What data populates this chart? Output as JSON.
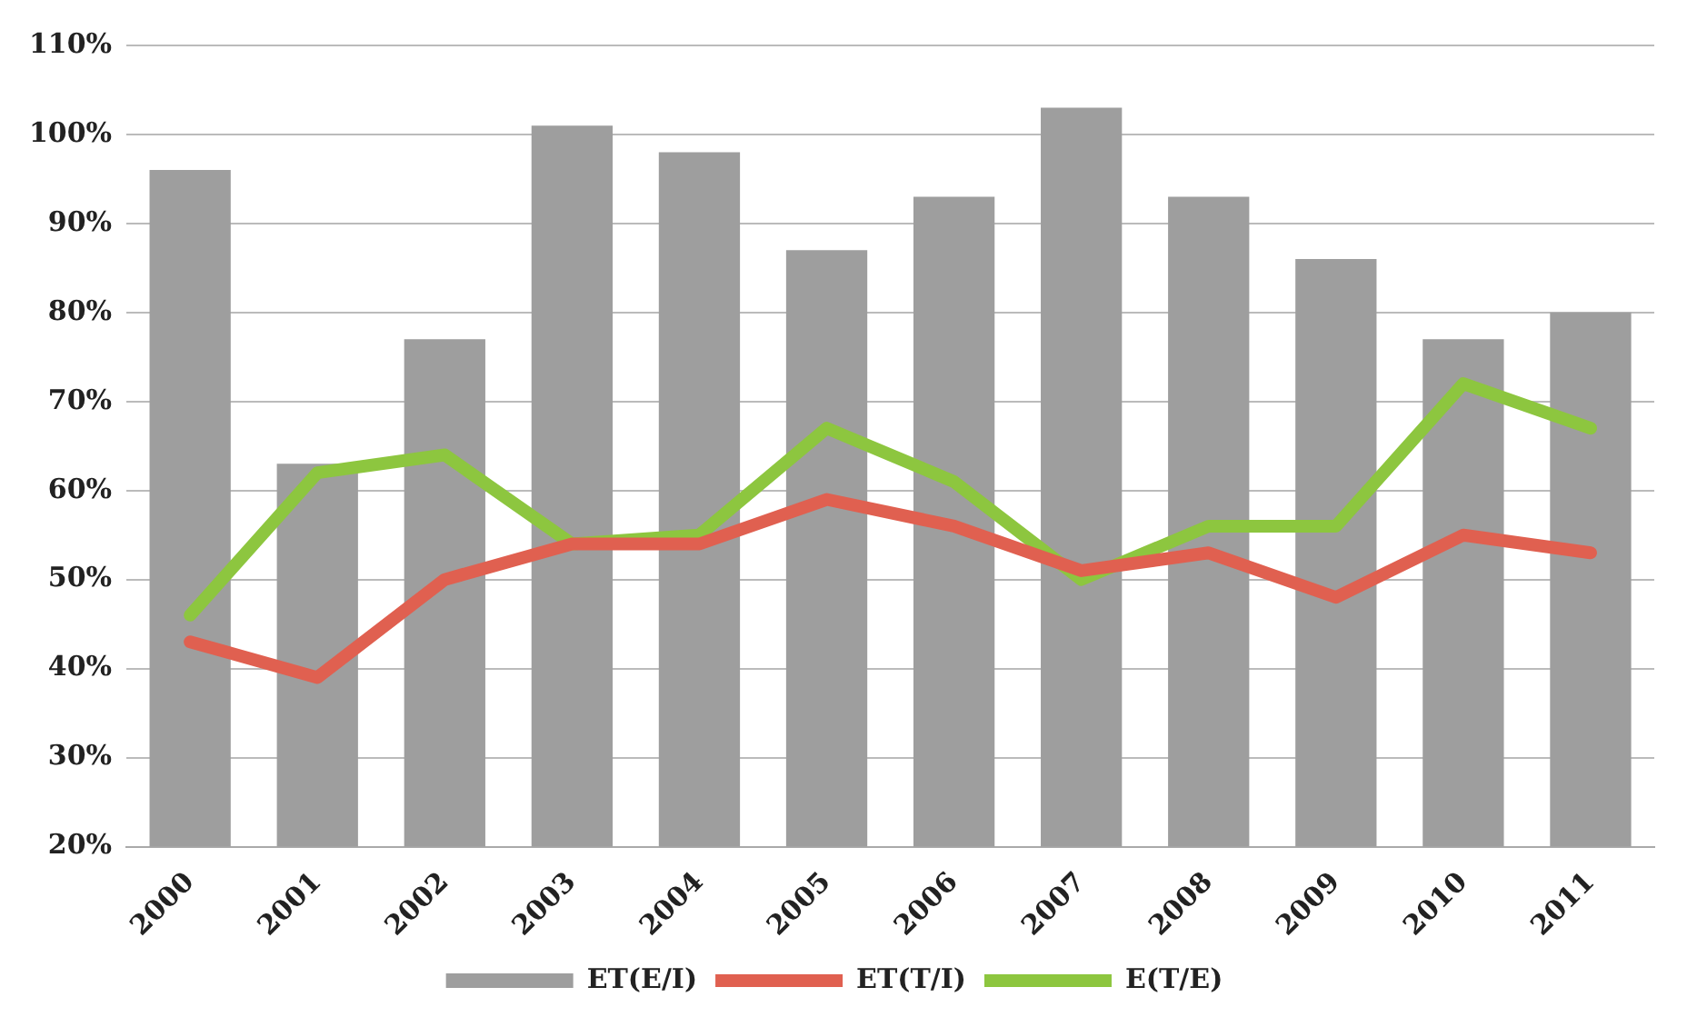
{
  "chart_data": {
    "type": "bar",
    "categories": [
      "2000",
      "2001",
      "2002",
      "2003",
      "2004",
      "2005",
      "2006",
      "2007",
      "2008",
      "2009",
      "2010",
      "2011"
    ],
    "series": [
      {
        "name": "ET(E/I)",
        "color": "#9e9e9e",
        "values": [
          96,
          63,
          77,
          101,
          98,
          87,
          93,
          103,
          93,
          86,
          77,
          80
        ]
      },
      {
        "name": "ET(T/I)",
        "type": "line",
        "color": "#e06050",
        "values": [
          43,
          39,
          50,
          54,
          54,
          59,
          56,
          51,
          53,
          48,
          55,
          53
        ]
      },
      {
        "name": "E(T/E)",
        "type": "line",
        "color": "#8dc63f",
        "values": [
          46,
          62,
          64,
          54,
          55,
          67,
          61,
          50,
          56,
          56,
          72,
          67
        ]
      }
    ],
    "ylim": [
      20,
      110
    ],
    "yticks": [
      {
        "value": 20,
        "label": "20%"
      },
      {
        "value": 30,
        "label": "30%"
      },
      {
        "value": 40,
        "label": "40%"
      },
      {
        "value": 50,
        "label": "50%"
      },
      {
        "value": 60,
        "label": "60%"
      },
      {
        "value": 70,
        "label": "70%"
      },
      {
        "value": 80,
        "label": "80%"
      },
      {
        "value": 90,
        "label": "90%"
      },
      {
        "value": 100,
        "label": "100%"
      },
      {
        "value": 110,
        "label": "110%"
      }
    ],
    "grid": "y",
    "legend": "bottom",
    "marker": "none",
    "line_style": "solid"
  }
}
